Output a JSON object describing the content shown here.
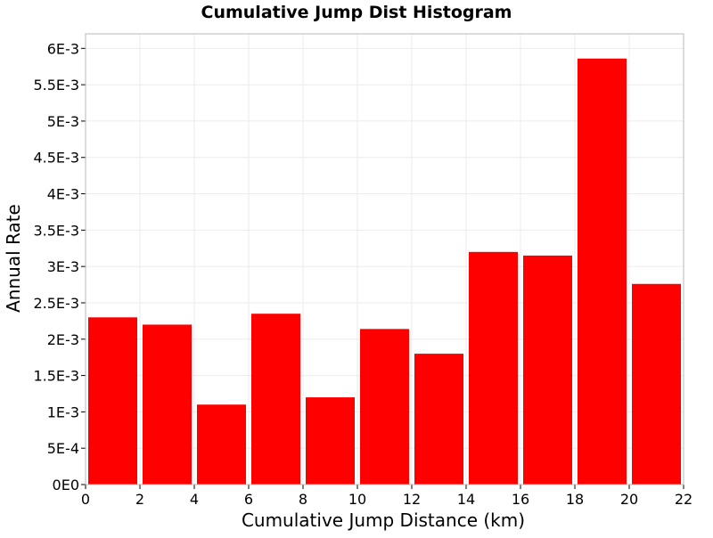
{
  "chart_data": {
    "type": "bar",
    "title": "Cumulative Jump Dist Histogram",
    "xlabel": "Cumulative Jump Distance (km)",
    "ylabel": "Annual Rate",
    "xlim": [
      0,
      22
    ],
    "ylim": [
      0,
      0.0062
    ],
    "grid": true,
    "bar_color": "#ff0000",
    "x_ticks": [
      0,
      2,
      4,
      6,
      8,
      10,
      12,
      14,
      16,
      18,
      20,
      22
    ],
    "x_tick_labels": [
      "0",
      "2",
      "4",
      "6",
      "8",
      "10",
      "12",
      "14",
      "16",
      "18",
      "20",
      "22"
    ],
    "y_ticks": [
      0,
      0.0005,
      0.001,
      0.0015,
      0.002,
      0.0025,
      0.003,
      0.0035,
      0.004,
      0.0045,
      0.005,
      0.0055,
      0.006
    ],
    "y_tick_labels": [
      "0E0",
      "5E-4",
      "1E-3",
      "1.5E-3",
      "2E-3",
      "2.5E-3",
      "3E-3",
      "3.5E-3",
      "4E-3",
      "4.5E-3",
      "5E-3",
      "5.5E-3",
      "6E-3"
    ],
    "bins": [
      {
        "x_start": 0,
        "x_end": 2,
        "value": 0.0023
      },
      {
        "x_start": 2,
        "x_end": 4,
        "value": 0.0022
      },
      {
        "x_start": 4,
        "x_end": 6,
        "value": 0.0011
      },
      {
        "x_start": 6,
        "x_end": 8,
        "value": 0.00235
      },
      {
        "x_start": 8,
        "x_end": 10,
        "value": 0.0012
      },
      {
        "x_start": 10,
        "x_end": 12,
        "value": 0.00214
      },
      {
        "x_start": 12,
        "x_end": 14,
        "value": 0.0018
      },
      {
        "x_start": 14,
        "x_end": 16,
        "value": 0.0032
      },
      {
        "x_start": 16,
        "x_end": 18,
        "value": 0.00315
      },
      {
        "x_start": 18,
        "x_end": 20,
        "value": 0.00586
      },
      {
        "x_start": 20,
        "x_end": 22,
        "value": 0.00276
      }
    ]
  }
}
